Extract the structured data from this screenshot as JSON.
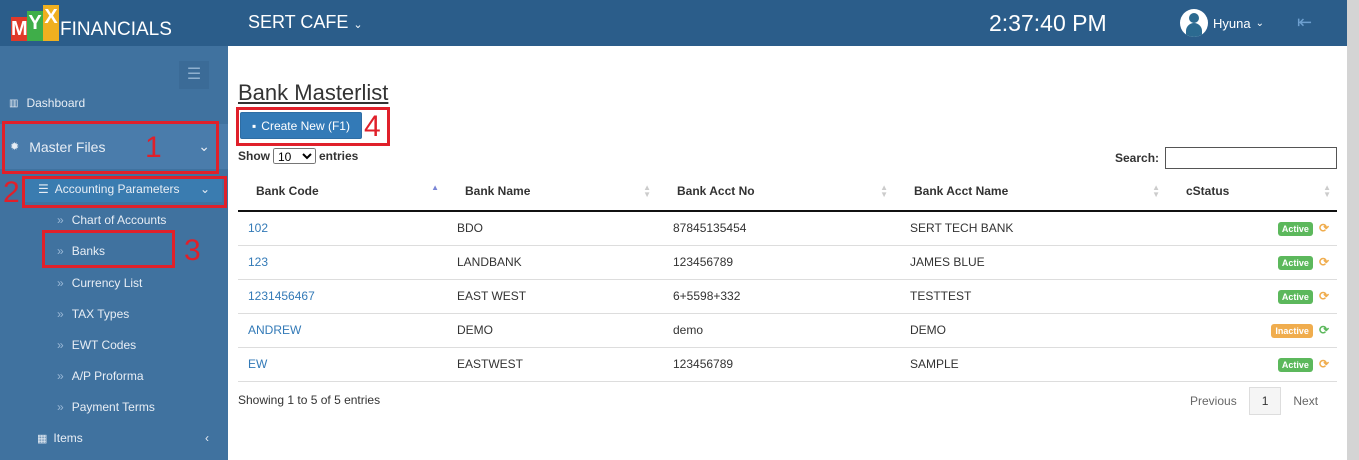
{
  "brand": {
    "letters": [
      "M",
      "Y",
      "X"
    ],
    "letter_colors": [
      "#e0392a",
      "#3fae49",
      "#f0b020"
    ],
    "suffix": "FINANCIALS"
  },
  "header": {
    "company": "SERT CAFE",
    "clock": "2:37:40 PM",
    "user": "Hyuna"
  },
  "sidebar": {
    "dashboard": "Dashboard",
    "master_files": "Master Files",
    "accounting_parameters": "Accounting Parameters",
    "sub_items": [
      "Chart of Accounts",
      "Banks",
      "Currency List",
      "TAX Types",
      "EWT Codes",
      "A/P Proforma",
      "Payment Terms"
    ],
    "items": "Items"
  },
  "annotations": [
    "1",
    "2",
    "3",
    "4"
  ],
  "page": {
    "title": "Bank Masterlist",
    "create_button": "Create New (F1)",
    "show_label": "Show",
    "page_size": "10",
    "entries_label": "entries",
    "search_label": "Search:",
    "search_value": ""
  },
  "table": {
    "columns": [
      "Bank Code",
      "Bank Name",
      "Bank Acct No",
      "Bank Acct Name",
      "cStatus"
    ],
    "rows": [
      {
        "code": "102",
        "name": "BDO",
        "acct_no": "87845135454",
        "acct_name": "SERT TECH BANK",
        "status": "Active"
      },
      {
        "code": "123",
        "name": "LANDBANK",
        "acct_no": "123456789",
        "acct_name": "JAMES BLUE",
        "status": "Active"
      },
      {
        "code": "1231456467",
        "name": "EAST WEST",
        "acct_no": "6+5598+332",
        "acct_name": "TESTTEST",
        "status": "Active"
      },
      {
        "code": "ANDREW",
        "name": "DEMO",
        "acct_no": "demo",
        "acct_name": "DEMO",
        "status": "Inactive"
      },
      {
        "code": "EW",
        "name": "EASTWEST",
        "acct_no": "123456789",
        "acct_name": "SAMPLE",
        "status": "Active"
      }
    ]
  },
  "status_colors": {
    "Active": "#5cb85c",
    "Inactive": "#f0ad4e"
  },
  "footer": {
    "info": "Showing 1 to 5 of 5 entries",
    "previous": "Previous",
    "page": "1",
    "next": "Next"
  }
}
